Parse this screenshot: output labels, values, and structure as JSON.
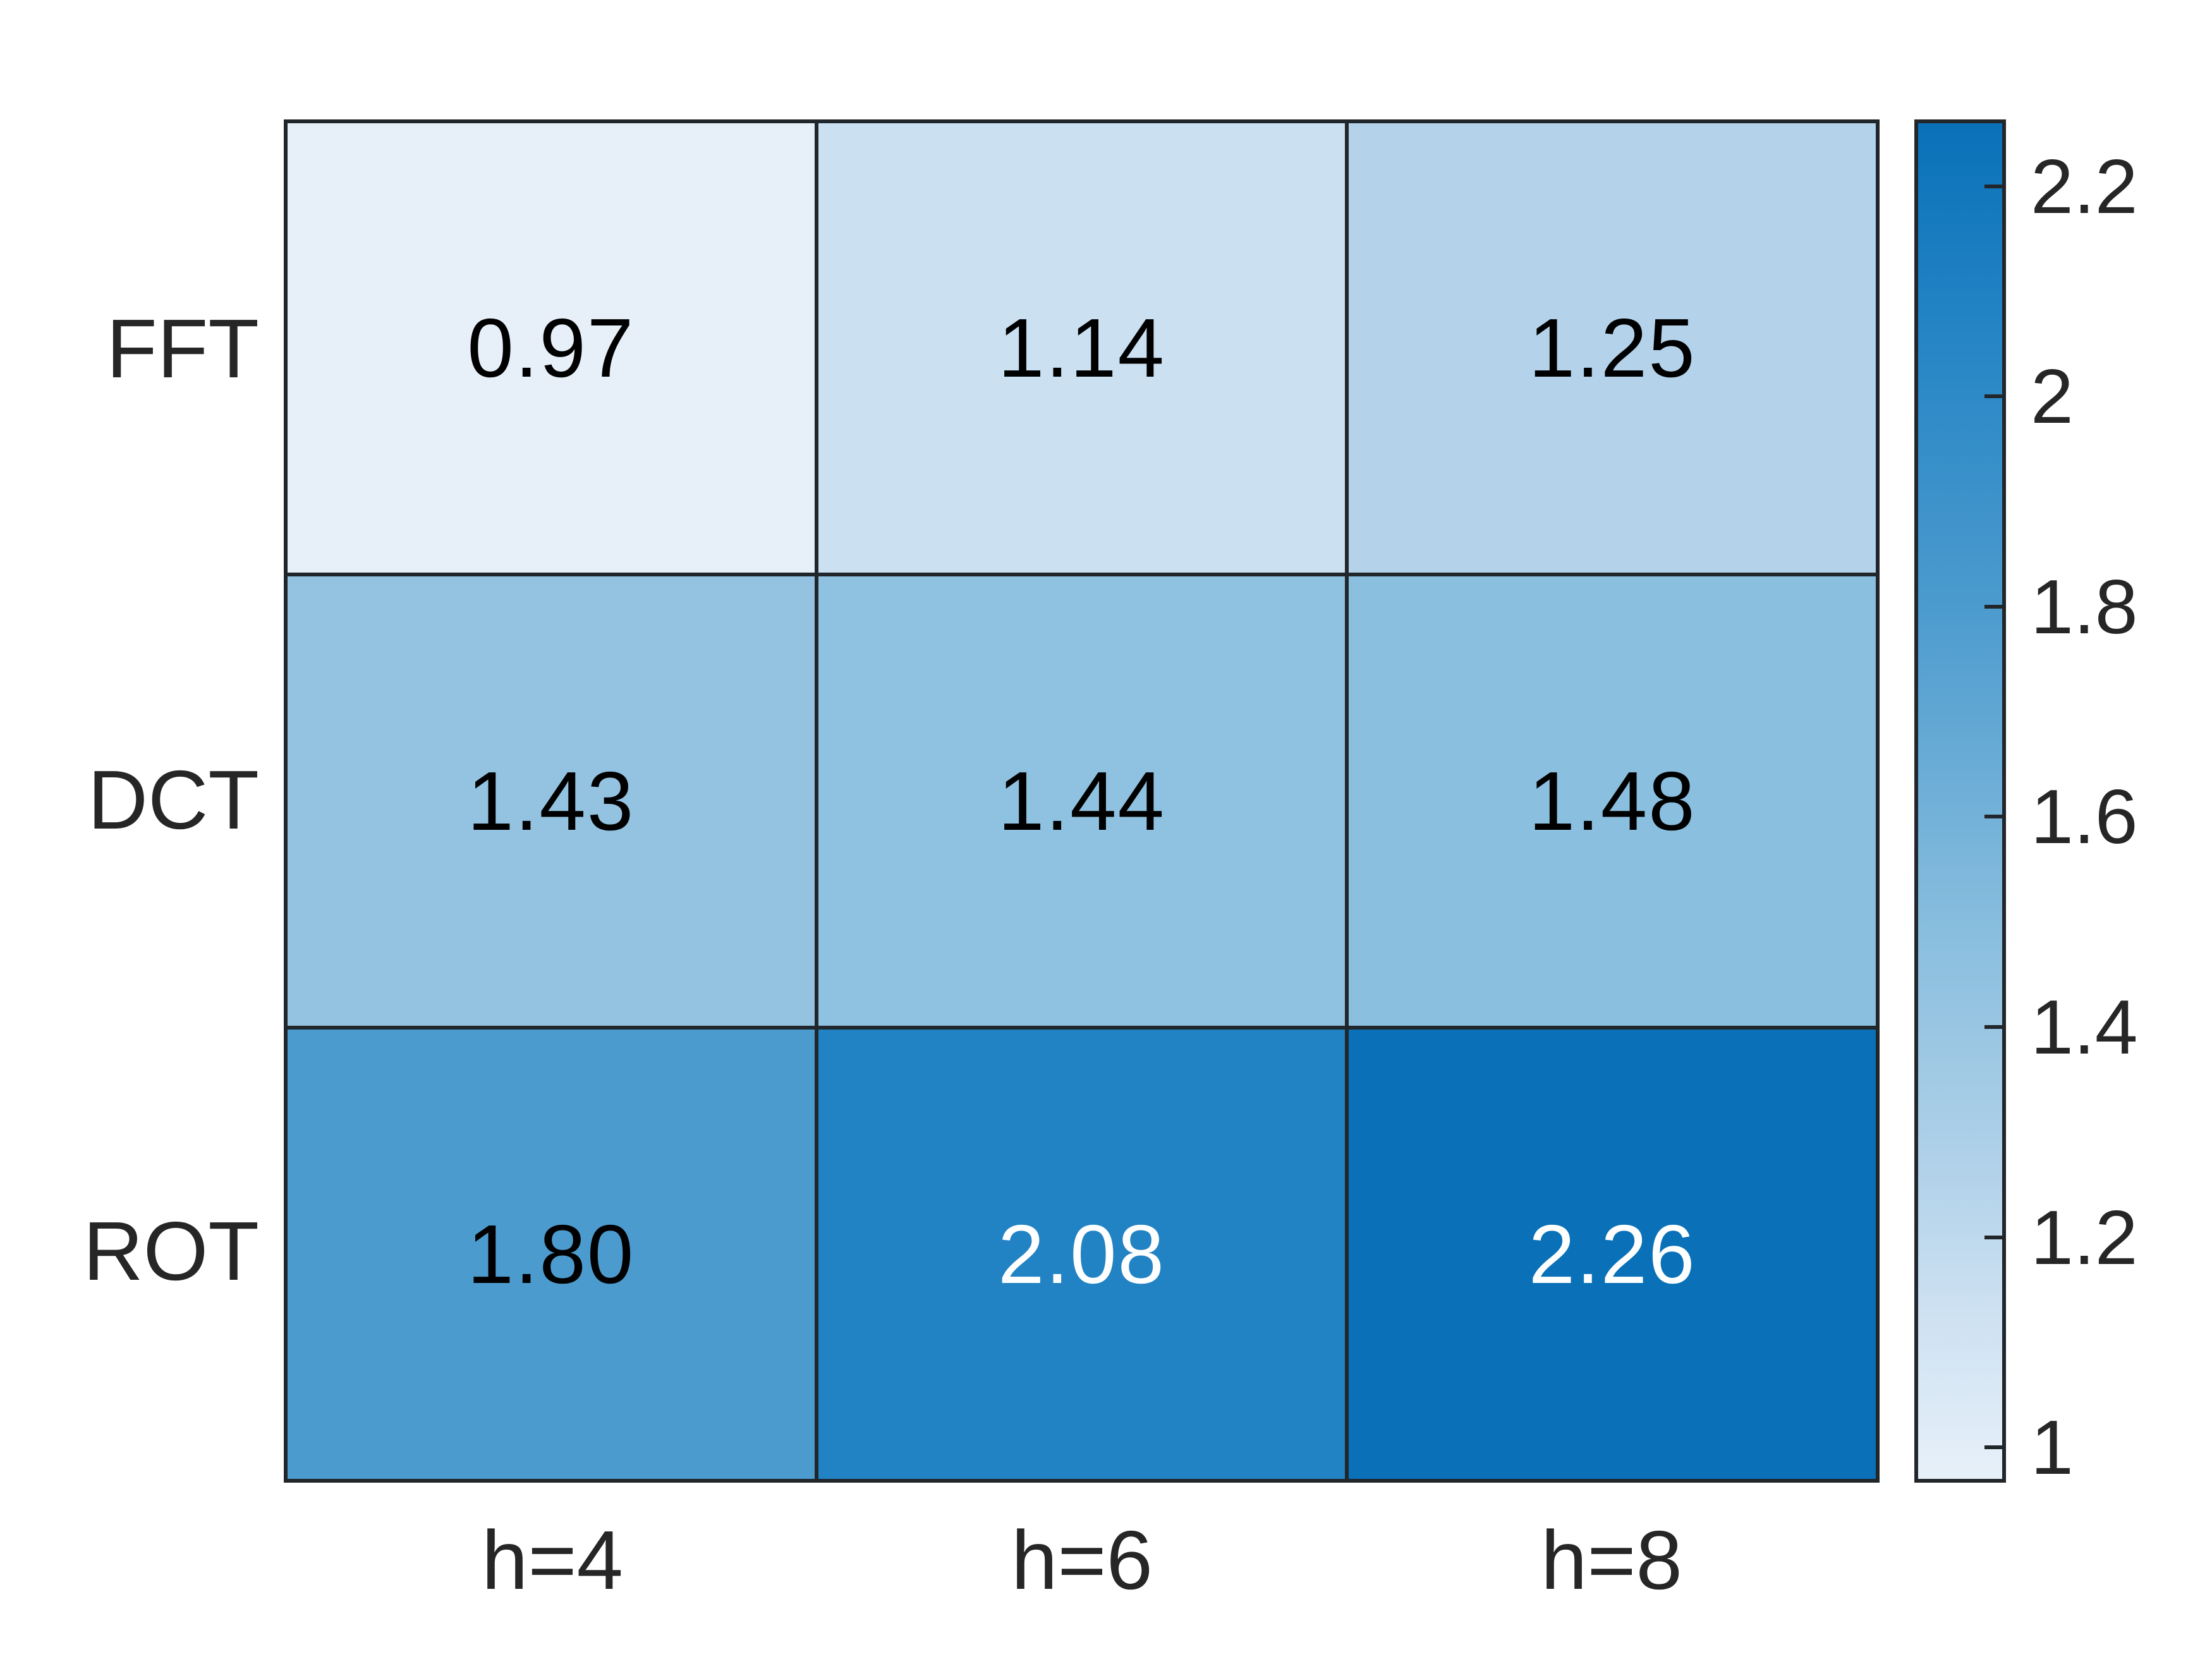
{
  "page": {
    "background": "#ffffff"
  },
  "colors": {
    "grid_line": "#21262b",
    "axis_label_text": "#262626",
    "cell_text_dark": "#000000",
    "cell_text_light": "#ffffff"
  },
  "chart_data": {
    "type": "heatmap",
    "title": "",
    "xlabel": "",
    "ylabel": "",
    "rows": [
      "FFT",
      "DCT",
      "ROT"
    ],
    "columns": [
      "h=4",
      "h=6",
      "h=8"
    ],
    "values": [
      [
        0.97,
        1.14,
        1.25
      ],
      [
        1.43,
        1.44,
        1.48
      ],
      [
        1.8,
        2.08,
        2.26
      ]
    ],
    "cell_labels": [
      [
        "0.97",
        "1.14",
        "1.25"
      ],
      [
        "1.43",
        "1.44",
        "1.48"
      ],
      [
        "1.80",
        "2.08",
        "2.26"
      ]
    ],
    "cell_colors": [
      [
        "#e7f0f9",
        "#cbe0f1",
        "#b4d3ea"
      ],
      [
        "#93c3e1",
        "#8fc2e0",
        "#8bbfdf"
      ],
      [
        "#4c9bce",
        "#2283c4",
        "#0a71b8"
      ]
    ],
    "cell_text_light": [
      [
        false,
        false,
        false
      ],
      [
        false,
        false,
        false
      ],
      [
        false,
        true,
        true
      ]
    ],
    "colormap": "Blues",
    "color_range": [
      0.97,
      2.26
    ],
    "grid_on": true,
    "colorbar": {
      "position": "right",
      "ticks": [
        {
          "value": 1.0,
          "label": "1"
        },
        {
          "value": 1.2,
          "label": "1.2"
        },
        {
          "value": 1.4,
          "label": "1.4"
        },
        {
          "value": 1.6,
          "label": "1.6"
        },
        {
          "value": 1.8,
          "label": "1.8"
        },
        {
          "value": 2.0,
          "label": "2"
        },
        {
          "value": 2.2,
          "label": "2.2"
        }
      ],
      "gradient_stops": [
        {
          "color": "#e7f0f9",
          "pos": 0
        },
        {
          "color": "#cbe0f1",
          "pos": 13.2
        },
        {
          "color": "#b4d3ea",
          "pos": 21.7
        },
        {
          "color": "#93c3e1",
          "pos": 35.7
        },
        {
          "color": "#8bbfdf",
          "pos": 39.5
        },
        {
          "color": "#4c9bce",
          "pos": 64.3
        },
        {
          "color": "#2283c4",
          "pos": 86
        },
        {
          "color": "#0a71b8",
          "pos": 100
        }
      ]
    }
  }
}
